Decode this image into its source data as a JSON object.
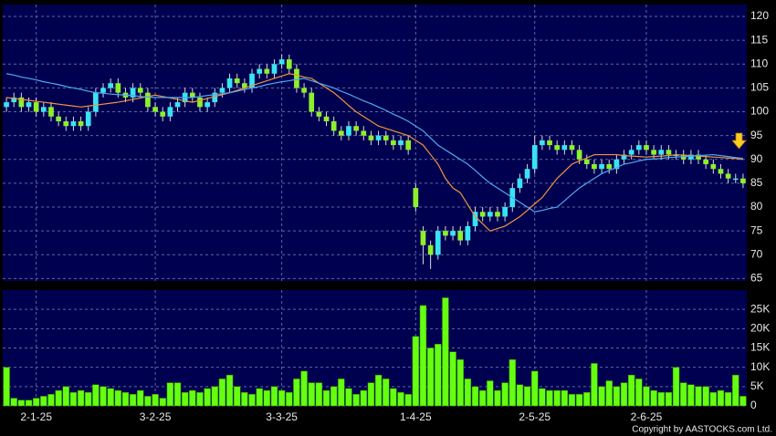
{
  "chart_data": {
    "type": "candlestick",
    "categories": [
      null,
      null,
      null,
      null,
      "2-1-25",
      null,
      null,
      null,
      null,
      null,
      null,
      null,
      null,
      null,
      null,
      null,
      null,
      null,
      null,
      null,
      "3-2-25",
      null,
      null,
      null,
      null,
      null,
      null,
      null,
      null,
      null,
      null,
      null,
      null,
      null,
      null,
      null,
      null,
      "3-3-25",
      null,
      null,
      null,
      null,
      null,
      null,
      null,
      null,
      null,
      null,
      null,
      null,
      null,
      null,
      null,
      null,
      null,
      "1-4-25",
      null,
      null,
      null,
      null,
      null,
      null,
      null,
      null,
      null,
      null,
      null,
      null,
      null,
      null,
      null,
      "2-5-25",
      null,
      null,
      null,
      null,
      null,
      null,
      null,
      null,
      null,
      null,
      null,
      null,
      null,
      null,
      "2-6-25",
      null,
      null,
      null,
      null,
      null,
      null,
      null,
      null,
      null,
      null,
      null,
      null,
      null
    ],
    "open": [
      101,
      102,
      103,
      101,
      102,
      100,
      101,
      99,
      98,
      97,
      98,
      97,
      100,
      104,
      105,
      106,
      104,
      103,
      105,
      104,
      101,
      100,
      99,
      101,
      102,
      104,
      103,
      101,
      102,
      104,
      105,
      107,
      106,
      105,
      108,
      109,
      108,
      110,
      111,
      109,
      105,
      104,
      100,
      99,
      98,
      96,
      95,
      97,
      96,
      95,
      94,
      95,
      94,
      93,
      94,
      84,
      75,
      72,
      70,
      75,
      74,
      75,
      73,
      76,
      79,
      78,
      79,
      78,
      80,
      84,
      86,
      88,
      93,
      94,
      93,
      92,
      93,
      92,
      90,
      89,
      88,
      89,
      88,
      90,
      91,
      92,
      93,
      92,
      91,
      92,
      91,
      91,
      90,
      91,
      90,
      89,
      88,
      87,
      86,
      86
    ],
    "high": [
      103,
      104,
      104,
      103,
      103,
      102,
      102,
      100,
      99,
      99,
      99,
      101,
      105,
      106,
      107,
      107,
      105,
      106,
      106,
      105,
      102,
      101,
      102,
      103,
      105,
      105,
      104,
      103,
      105,
      106,
      108,
      108,
      107,
      109,
      110,
      110,
      111,
      112,
      112,
      110,
      106,
      105,
      101,
      100,
      99,
      97,
      98,
      98,
      97,
      96,
      96,
      96,
      95,
      95,
      95,
      85,
      76,
      73,
      76,
      76,
      76,
      76,
      77,
      80,
      80,
      80,
      80,
      81,
      85,
      87,
      89,
      95,
      95,
      95,
      94,
      94,
      94,
      93,
      91,
      90,
      90,
      90,
      91,
      92,
      93,
      94,
      94,
      93,
      93,
      93,
      92,
      92,
      92,
      92,
      91,
      90,
      89,
      88,
      87,
      87
    ],
    "low": [
      100,
      101,
      100,
      100,
      99,
      99,
      98,
      97,
      96,
      96,
      96,
      96,
      99,
      103,
      104,
      103,
      102,
      102,
      103,
      100,
      99,
      98,
      98,
      100,
      101,
      102,
      100,
      100,
      101,
      103,
      104,
      105,
      104,
      104,
      107,
      107,
      107,
      109,
      108,
      104,
      103,
      99,
      98,
      97,
      95,
      94,
      94,
      95,
      94,
      93,
      93,
      93,
      92,
      92,
      91,
      79,
      68,
      67,
      69,
      73,
      73,
      72,
      72,
      75,
      77,
      77,
      77,
      77,
      79,
      83,
      85,
      87,
      92,
      92,
      91,
      91,
      91,
      89,
      88,
      87,
      87,
      87,
      87,
      89,
      90,
      91,
      91,
      90,
      90,
      90,
      90,
      89,
      89,
      89,
      88,
      87,
      86,
      85,
      85,
      84
    ],
    "close": [
      102,
      103,
      101,
      102,
      100,
      101,
      99,
      98,
      97,
      98,
      97,
      100,
      104,
      105,
      106,
      104,
      103,
      105,
      104,
      101,
      100,
      99,
      101,
      102,
      104,
      103,
      101,
      102,
      104,
      105,
      107,
      106,
      105,
      108,
      109,
      108,
      110,
      111,
      109,
      105,
      104,
      100,
      99,
      98,
      96,
      95,
      97,
      96,
      95,
      94,
      95,
      94,
      93,
      94,
      92,
      80,
      72,
      70,
      75,
      74,
      75,
      73,
      76,
      79,
      78,
      79,
      78,
      80,
      84,
      86,
      88,
      93,
      94,
      93,
      92,
      93,
      92,
      90,
      89,
      88,
      89,
      88,
      90,
      91,
      92,
      93,
      92,
      91,
      92,
      91,
      91,
      90,
      91,
      90,
      89,
      88,
      87,
      86,
      86,
      85
    ],
    "up_color": "#38e4f4",
    "down_color": "#8cf02a",
    "ylim": [
      64.5,
      122.5
    ],
    "yticks": [
      65,
      70,
      75,
      80,
      85,
      90,
      95,
      100,
      105,
      110,
      115,
      120
    ],
    "grid": true,
    "ma": [
      {
        "color": "#f0943a",
        "values": [
          103,
          102.8,
          102.6,
          102.4,
          102.2,
          102,
          101.8,
          101.6,
          101.4,
          101.2,
          101,
          101.2,
          101.4,
          101.6,
          101.8,
          102,
          102.3,
          102.6,
          102.9,
          103.2,
          103.5,
          103.2,
          102.9,
          102.6,
          102.3,
          102,
          102.4,
          102.8,
          103.2,
          103.6,
          104,
          104.5,
          105,
          105.5,
          106,
          106.5,
          107,
          107.5,
          108,
          107.7,
          107.3,
          107,
          106,
          105,
          104,
          102.7,
          101.3,
          100,
          99,
          98,
          97,
          96.5,
          96,
          95.5,
          95,
          94,
          93,
          91,
          89,
          86,
          84,
          83,
          80.5,
          78,
          76.5,
          75,
          75.5,
          76,
          77,
          78,
          79.3,
          80.7,
          82,
          84,
          86,
          87.5,
          89,
          89.7,
          90.3,
          91,
          91,
          91,
          91,
          90.8,
          90.7,
          90.6,
          90.5,
          90.6,
          90.7,
          90.8,
          91,
          90.9,
          90.8,
          90.7,
          90.6,
          90.5,
          90.4,
          90.3,
          90.2,
          90
        ]
      },
      {
        "color": "#4fa8f0",
        "values": [
          108,
          107.7,
          107.3,
          107,
          106.7,
          106.3,
          106,
          105.7,
          105.3,
          105,
          104.7,
          104.3,
          104,
          103.9,
          103.7,
          103.6,
          103.5,
          103.4,
          103.2,
          103.1,
          103,
          103,
          103,
          103,
          103,
          103,
          103.2,
          103.4,
          103.6,
          103.8,
          104,
          104.3,
          104.7,
          105,
          105.3,
          105.7,
          106,
          106.3,
          106.5,
          106.8,
          107,
          106.5,
          106,
          105.5,
          105,
          104.3,
          103.7,
          103,
          102.3,
          101.7,
          101,
          100.3,
          99.5,
          98.8,
          98,
          97,
          96,
          94.5,
          93,
          92,
          91,
          90,
          89,
          87.7,
          86.3,
          85,
          84,
          83,
          82,
          81,
          80,
          79,
          79.3,
          79.7,
          80,
          81.3,
          82.7,
          84,
          85,
          86,
          87,
          87.7,
          88.3,
          89,
          89.3,
          89.7,
          90,
          90.1,
          90.2,
          90.4,
          90.5,
          90.6,
          90.7,
          90.8,
          90.9,
          91,
          90.8,
          90.6,
          90.4,
          90.2
        ]
      }
    ],
    "volume": {
      "color": "#66ff11",
      "values": [
        10000,
        2000,
        1500,
        1500,
        2000,
        2500,
        3000,
        4000,
        5000,
        3500,
        4000,
        3500,
        5500,
        5000,
        4500,
        4000,
        3500,
        3000,
        4000,
        2500,
        3000,
        2000,
        6000,
        6000,
        3500,
        4000,
        3500,
        4500,
        5000,
        7000,
        8000,
        5000,
        3500,
        3000,
        4500,
        4000,
        5000,
        4000,
        3500,
        7000,
        9000,
        6000,
        6000,
        4000,
        5000,
        7000,
        4500,
        3000,
        4000,
        6000,
        8000,
        7000,
        4500,
        3500,
        3000,
        18000,
        26000,
        15000,
        16000,
        28000,
        14000,
        12000,
        7000,
        5000,
        4000,
        6500,
        4000,
        6000,
        12000,
        5500,
        5000,
        9000,
        4500,
        4000,
        4000,
        4000,
        3000,
        3000,
        3500,
        11000,
        5000,
        6500,
        5000,
        6000,
        8000,
        7000,
        5000,
        4000,
        3500,
        3500,
        10000,
        6000,
        5500,
        5000,
        5000,
        3500,
        4000,
        3500,
        8000,
        2500
      ],
      "ylim": [
        0,
        30000
      ],
      "yticks": [
        0,
        {
          "value": 5000,
          "label": "5K"
        },
        {
          "value": 10000,
          "label": "10K"
        },
        {
          "value": 15000,
          "label": "15K"
        },
        {
          "value": 20000,
          "label": "20K"
        },
        {
          "value": 25000,
          "label": "25K"
        }
      ]
    }
  },
  "footer": {
    "copyright": "Copyright by AASTOCKS.com Ltd."
  }
}
